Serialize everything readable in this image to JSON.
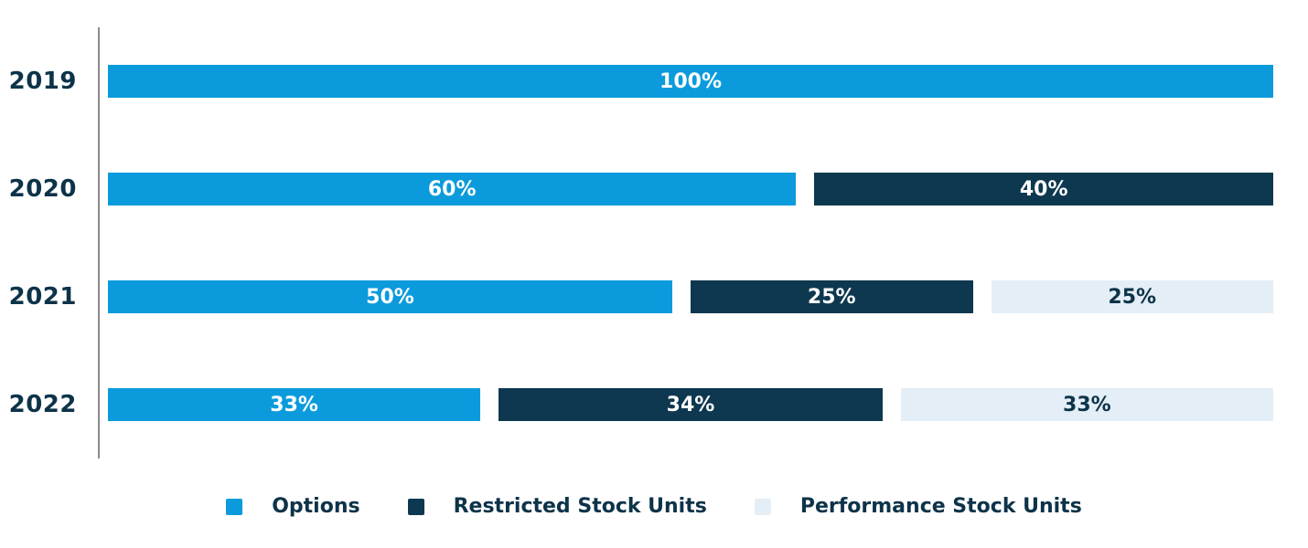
{
  "chart_data": {
    "type": "bar",
    "orientation": "horizontal",
    "stacked": true,
    "title": "",
    "xlabel": "",
    "ylabel": "",
    "xlim": [
      0,
      100
    ],
    "grid": false,
    "legend_position": "bottom",
    "value_suffix": "%",
    "categories": [
      "2019",
      "2020",
      "2021",
      "2022"
    ],
    "series": [
      {
        "name": "Options",
        "color": "#0b9bdc",
        "label_color": "#ffffff",
        "values": [
          100,
          60,
          50,
          33
        ]
      },
      {
        "name": "Restricted Stock Units",
        "color": "#0d384f",
        "label_color": "#ffffff",
        "values": [
          0,
          40,
          25,
          34
        ]
      },
      {
        "name": "Performance Stock Units",
        "color": "#e4eef6",
        "label_color": "#0d3349",
        "values": [
          0,
          0,
          25,
          33
        ]
      }
    ],
    "bar_labels": [
      [
        "100%"
      ],
      [
        "60%",
        "40%"
      ],
      [
        "50%",
        "25%",
        "25%"
      ],
      [
        "33%",
        "34%",
        "33%"
      ]
    ]
  },
  "colors": {
    "axis_line": "#8a8a8a",
    "category_text": "#0d3349",
    "legend_text": "#0d3349",
    "background": "#ffffff"
  },
  "legend": {
    "items": [
      {
        "label": "Options",
        "color": "#0b9bdc"
      },
      {
        "label": "Restricted Stock Units",
        "color": "#0d384f"
      },
      {
        "label": "Performance Stock Units",
        "color": "#e4eef6"
      }
    ]
  }
}
